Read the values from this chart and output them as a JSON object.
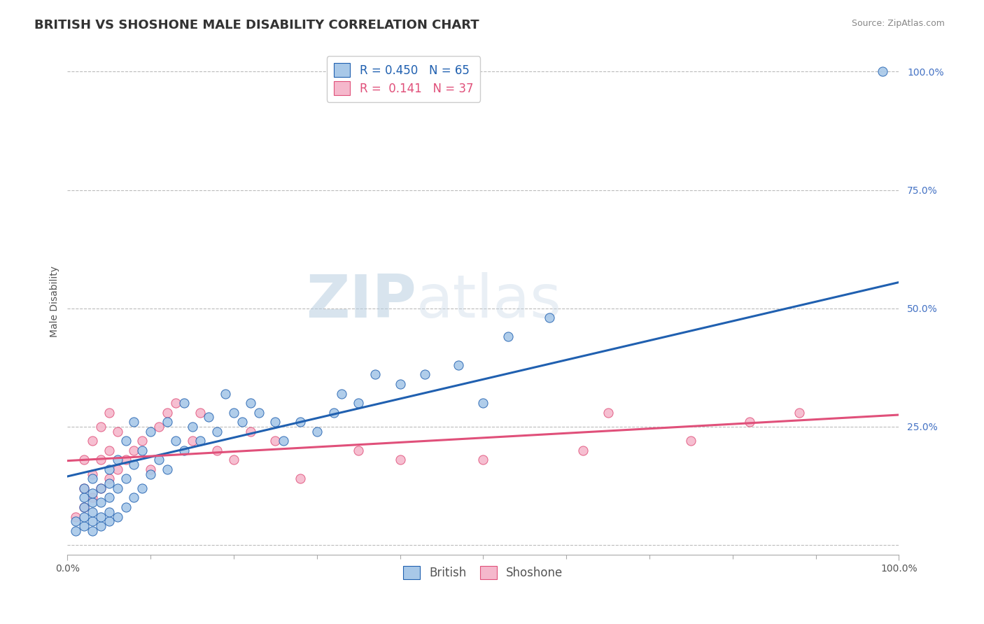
{
  "title": "BRITISH VS SHOSHONE MALE DISABILITY CORRELATION CHART",
  "source": "Source: ZipAtlas.com",
  "ylabel": "Male Disability",
  "xlim": [
    0,
    1
  ],
  "ylim": [
    -0.02,
    1.05
  ],
  "ytick_positions": [
    0,
    0.25,
    0.5,
    0.75,
    1.0
  ],
  "ytick_labels": [
    "",
    "25.0%",
    "50.0%",
    "75.0%",
    "100.0%"
  ],
  "british_color": "#a8c8e8",
  "shoshone_color": "#f5b8cc",
  "british_line_color": "#2060b0",
  "shoshone_line_color": "#e0507a",
  "R_british": 0.45,
  "N_british": 65,
  "R_shoshone": 0.141,
  "N_shoshone": 37,
  "british_scatter_x": [
    0.01,
    0.01,
    0.02,
    0.02,
    0.02,
    0.02,
    0.02,
    0.03,
    0.03,
    0.03,
    0.03,
    0.03,
    0.03,
    0.04,
    0.04,
    0.04,
    0.04,
    0.05,
    0.05,
    0.05,
    0.05,
    0.05,
    0.06,
    0.06,
    0.06,
    0.07,
    0.07,
    0.07,
    0.08,
    0.08,
    0.08,
    0.09,
    0.09,
    0.1,
    0.1,
    0.11,
    0.12,
    0.12,
    0.13,
    0.14,
    0.14,
    0.15,
    0.16,
    0.17,
    0.18,
    0.19,
    0.2,
    0.21,
    0.22,
    0.23,
    0.25,
    0.26,
    0.28,
    0.3,
    0.32,
    0.33,
    0.35,
    0.37,
    0.4,
    0.43,
    0.47,
    0.5,
    0.53,
    0.58,
    0.98
  ],
  "british_scatter_y": [
    0.03,
    0.05,
    0.04,
    0.06,
    0.08,
    0.1,
    0.12,
    0.03,
    0.05,
    0.07,
    0.09,
    0.11,
    0.14,
    0.04,
    0.06,
    0.09,
    0.12,
    0.05,
    0.07,
    0.1,
    0.13,
    0.16,
    0.06,
    0.12,
    0.18,
    0.08,
    0.14,
    0.22,
    0.1,
    0.17,
    0.26,
    0.12,
    0.2,
    0.15,
    0.24,
    0.18,
    0.16,
    0.26,
    0.22,
    0.2,
    0.3,
    0.25,
    0.22,
    0.27,
    0.24,
    0.32,
    0.28,
    0.26,
    0.3,
    0.28,
    0.26,
    0.22,
    0.26,
    0.24,
    0.28,
    0.32,
    0.3,
    0.36,
    0.34,
    0.36,
    0.38,
    0.3,
    0.44,
    0.48,
    1.0
  ],
  "shoshone_scatter_x": [
    0.01,
    0.02,
    0.02,
    0.02,
    0.03,
    0.03,
    0.03,
    0.04,
    0.04,
    0.04,
    0.05,
    0.05,
    0.05,
    0.06,
    0.06,
    0.07,
    0.08,
    0.09,
    0.1,
    0.11,
    0.12,
    0.13,
    0.15,
    0.16,
    0.18,
    0.2,
    0.22,
    0.25,
    0.28,
    0.35,
    0.4,
    0.5,
    0.62,
    0.65,
    0.75,
    0.82,
    0.88
  ],
  "shoshone_scatter_y": [
    0.06,
    0.08,
    0.12,
    0.18,
    0.1,
    0.15,
    0.22,
    0.12,
    0.18,
    0.25,
    0.14,
    0.2,
    0.28,
    0.16,
    0.24,
    0.18,
    0.2,
    0.22,
    0.16,
    0.25,
    0.28,
    0.3,
    0.22,
    0.28,
    0.2,
    0.18,
    0.24,
    0.22,
    0.14,
    0.2,
    0.18,
    0.18,
    0.2,
    0.28,
    0.22,
    0.26,
    0.28
  ],
  "british_trend": [
    0.145,
    0.555
  ],
  "shoshone_trend": [
    0.178,
    0.275
  ],
  "watermark_zip": "ZIP",
  "watermark_atlas": "atlas",
  "background_color": "#ffffff",
  "grid_color": "#bbbbbb",
  "title_fontsize": 13,
  "axis_label_fontsize": 10,
  "tick_fontsize": 10,
  "legend_fontsize": 12,
  "ytick_color": "#4472c4",
  "xtick_color": "#555555"
}
